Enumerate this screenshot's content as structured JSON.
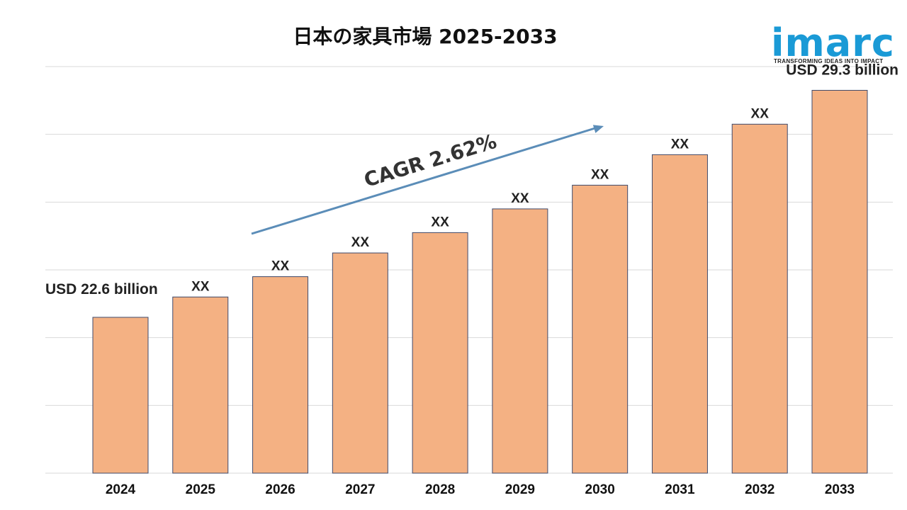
{
  "logo": {
    "word": "imarc",
    "tagline": "TRANSFORMING IDEAS INTO IMPACT",
    "color": "#1a9ad6"
  },
  "chart_data": {
    "type": "bar",
    "title": "日本の家具市場 2025-2033",
    "categories": [
      "2024",
      "2025",
      "2026",
      "2027",
      "2028",
      "2029",
      "2030",
      "2031",
      "2032",
      "2033"
    ],
    "series": [
      {
        "values": [
          22.6,
          23.2,
          23.8,
          24.5,
          25.1,
          25.8,
          26.5,
          27.4,
          28.3,
          29.3
        ]
      }
    ],
    "data_labels": [
      "USD 22.6 billion",
      "XX",
      "XX",
      "XX",
      "XX",
      "XX",
      "XX",
      "XX",
      "XX",
      "USD 29.3 billion"
    ],
    "ylim": [
      18,
      30
    ],
    "grid": true,
    "annotation": {
      "text": "CAGR 2.62%",
      "kind": "arrow"
    },
    "colors": {
      "bar_fill": "#f4b183",
      "bar_stroke": "#3f4a6b",
      "grid": "#d9d9d9",
      "arrow": "#5b8db8"
    }
  }
}
